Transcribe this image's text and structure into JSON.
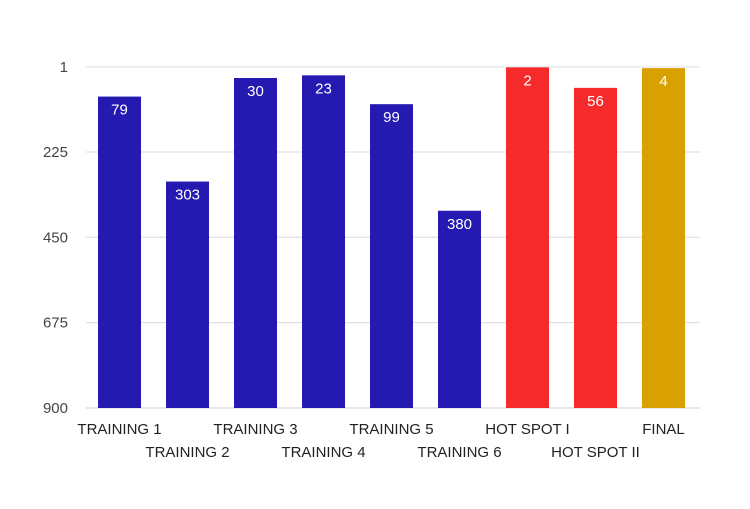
{
  "chart_data": {
    "type": "bar",
    "title": "",
    "xlabel": "",
    "ylabel": "",
    "y_axis_inverted": true,
    "ylim": [
      1,
      900
    ],
    "yticks": [
      1,
      225,
      450,
      675,
      900
    ],
    "grid": true,
    "legend": "none",
    "categories": [
      "TRAINING 1",
      "TRAINING 2",
      "TRAINING 3",
      "TRAINING 4",
      "TRAINING 5",
      "TRAINING 6",
      "HOT SPOT I",
      "HOT SPOT II",
      "FINAL"
    ],
    "values": [
      79,
      303,
      30,
      23,
      99,
      380,
      2,
      56,
      4
    ],
    "bar_colors": [
      "#2419b0",
      "#2419b0",
      "#2419b0",
      "#2419b0",
      "#2419b0",
      "#2419b0",
      "#f52a2a",
      "#f52a2a",
      "#d9a100"
    ],
    "data_labels": [
      "79",
      "303",
      "30",
      "23",
      "99",
      "380",
      "2",
      "56",
      "4"
    ]
  },
  "colors": {
    "grid": "#dcdcdc",
    "baseline": "#cfcfcf"
  }
}
